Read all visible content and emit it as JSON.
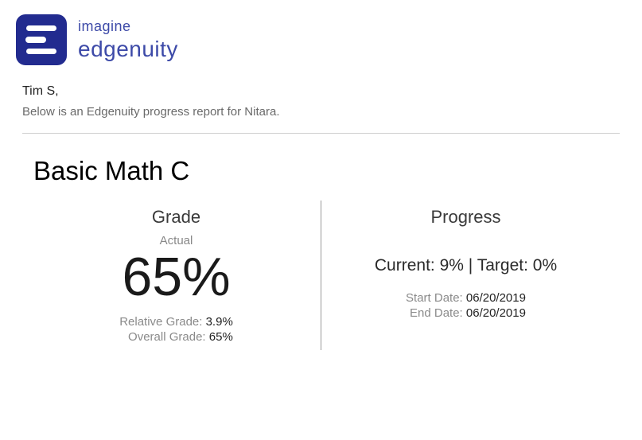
{
  "brand": {
    "topline": "imagine",
    "name": "edgenuity",
    "logo_bg": "#222b8f",
    "logo_fg": "#ffffff",
    "text_color": "#3d4aa8"
  },
  "intro": {
    "recipient": "Tim S,",
    "line": "Below is an Edgenuity progress report for Nitara."
  },
  "course": {
    "title": "Basic Math C"
  },
  "grade": {
    "heading": "Grade",
    "actual_label": "Actual",
    "actual_value": "65%",
    "relative_label": "Relative Grade:",
    "relative_value": "3.9%",
    "overall_label": "Overall Grade:",
    "overall_value": "65%"
  },
  "progress": {
    "heading": "Progress",
    "current_label": "Current:",
    "current_value": "9%",
    "separator": "|",
    "target_label": "Target:",
    "target_value": "0%",
    "start_label": "Start Date:",
    "start_value": "06/20/2019",
    "end_label": "End Date:",
    "end_value": "06/20/2019"
  },
  "styling": {
    "background": "#ffffff",
    "text_primary": "#1a1a1a",
    "text_muted": "#8a8a8a",
    "divider_color": "#cfcfcf",
    "panel_divider_color": "#9a9a9a"
  }
}
